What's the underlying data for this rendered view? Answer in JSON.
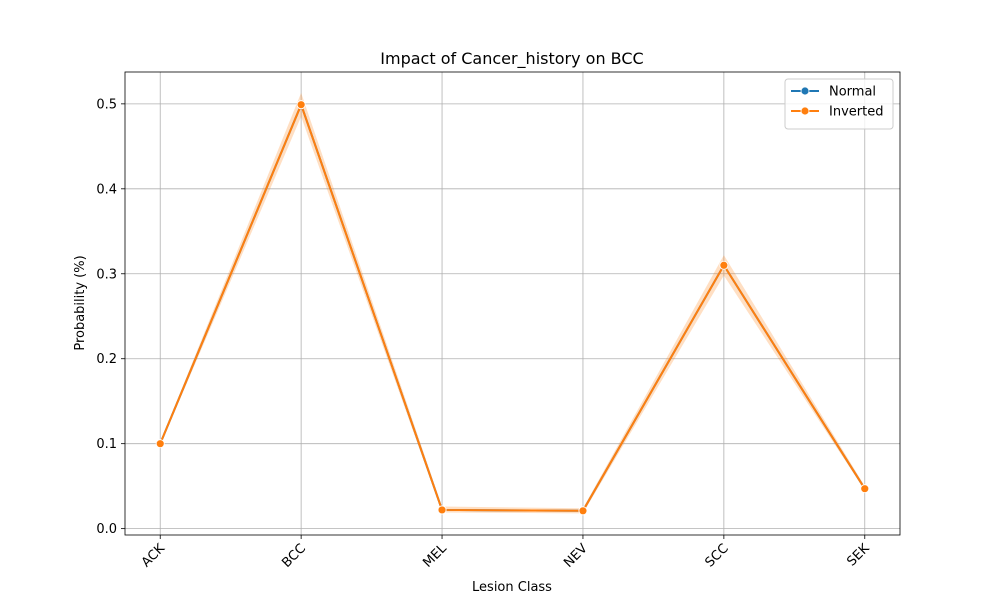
{
  "chart_data": {
    "type": "line",
    "title": "Impact of Cancer_history on BCC",
    "xlabel": "Lesion Class",
    "ylabel": "Probability (%)",
    "categories": [
      "ACK",
      "BCC",
      "MEL",
      "NEV",
      "SCC",
      "SEK"
    ],
    "ylim": [
      -0.0075,
      0.5375
    ],
    "yticks": [
      0.0,
      0.1,
      0.2,
      0.3,
      0.4,
      0.5
    ],
    "ytick_labels": [
      "0.0",
      "0.1",
      "0.2",
      "0.3",
      "0.4",
      "0.5"
    ],
    "grid": true,
    "legend_position": "top-right",
    "series": [
      {
        "name": "Normal",
        "color": "#1f77b4",
        "values": [
          0.1,
          0.499,
          0.022,
          0.021,
          0.31,
          0.047
        ]
      },
      {
        "name": "Inverted",
        "color": "#ff7f0e",
        "values": [
          0.1,
          0.499,
          0.022,
          0.021,
          0.31,
          0.047
        ],
        "band_lower": [
          0.098,
          0.485,
          0.019,
          0.018,
          0.298,
          0.045
        ],
        "band_upper": [
          0.102,
          0.513,
          0.026,
          0.024,
          0.322,
          0.05
        ]
      }
    ]
  }
}
